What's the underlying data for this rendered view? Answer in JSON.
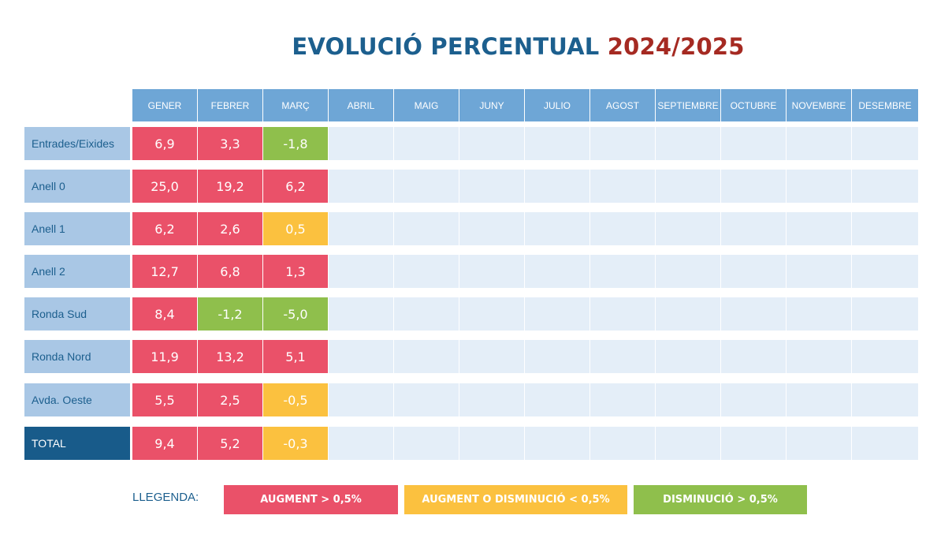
{
  "chart_data": {
    "type": "table",
    "title": "EVOLUCIÓ PERCENTUAL",
    "title_year": "2024/2025",
    "columns": [
      "GENER",
      "FEBRER",
      "MARÇ",
      "ABRIL",
      "MAIG",
      "JUNY",
      "JULIO",
      "AGOST",
      "SEPTIEMBRE",
      "OCTUBRE",
      "NOVEMBRE",
      "DESEMBRE"
    ],
    "rows": [
      {
        "label": "Entrades/Eixides",
        "values": [
          "6,9",
          "3,3",
          "-1,8"
        ],
        "status": [
          "up",
          "up",
          "down"
        ]
      },
      {
        "label": "Anell 0",
        "values": [
          "25,0",
          "19,2",
          "6,2"
        ],
        "status": [
          "up",
          "up",
          "up"
        ]
      },
      {
        "label": "Anell 1",
        "values": [
          "6,2",
          "2,6",
          "0,5"
        ],
        "status": [
          "up",
          "up",
          "flat"
        ]
      },
      {
        "label": "Anell 2",
        "values": [
          "12,7",
          "6,8",
          "1,3"
        ],
        "status": [
          "up",
          "up",
          "up"
        ]
      },
      {
        "label": "Ronda Sud",
        "values": [
          "8,4",
          "-1,2",
          "-5,0"
        ],
        "status": [
          "up",
          "down",
          "down"
        ]
      },
      {
        "label": "Ronda Nord",
        "values": [
          "11,9",
          "13,2",
          "5,1"
        ],
        "status": [
          "up",
          "up",
          "up"
        ]
      },
      {
        "label": "Avda. Oeste",
        "values": [
          "5,5",
          "2,5",
          "-0,5"
        ],
        "status": [
          "up",
          "up",
          "flat"
        ]
      },
      {
        "label": "TOTAL",
        "values": [
          "9,4",
          "5,2",
          "-0,3"
        ],
        "status": [
          "up",
          "up",
          "flat"
        ]
      }
    ],
    "legend": {
      "label": "LLEGENDA:",
      "items": [
        {
          "text": "AUGMENT  > 0,5%",
          "status": "up",
          "color": "#ea5169"
        },
        {
          "text": "AUGMENT O DISMINUCIÓ  < 0,5%",
          "status": "flat",
          "color": "#fbc13f"
        },
        {
          "text": "DISMINUCIÓ  > 0,5%",
          "status": "down",
          "color": "#8fbf4c"
        }
      ]
    },
    "colors": {
      "header": "#6ea6d6",
      "row_label": "#a9c7e5",
      "total_label": "#185b8a",
      "empty_cell": "#e4eef8",
      "title": "#1c5f8e",
      "title_year": "#a52a22"
    }
  }
}
